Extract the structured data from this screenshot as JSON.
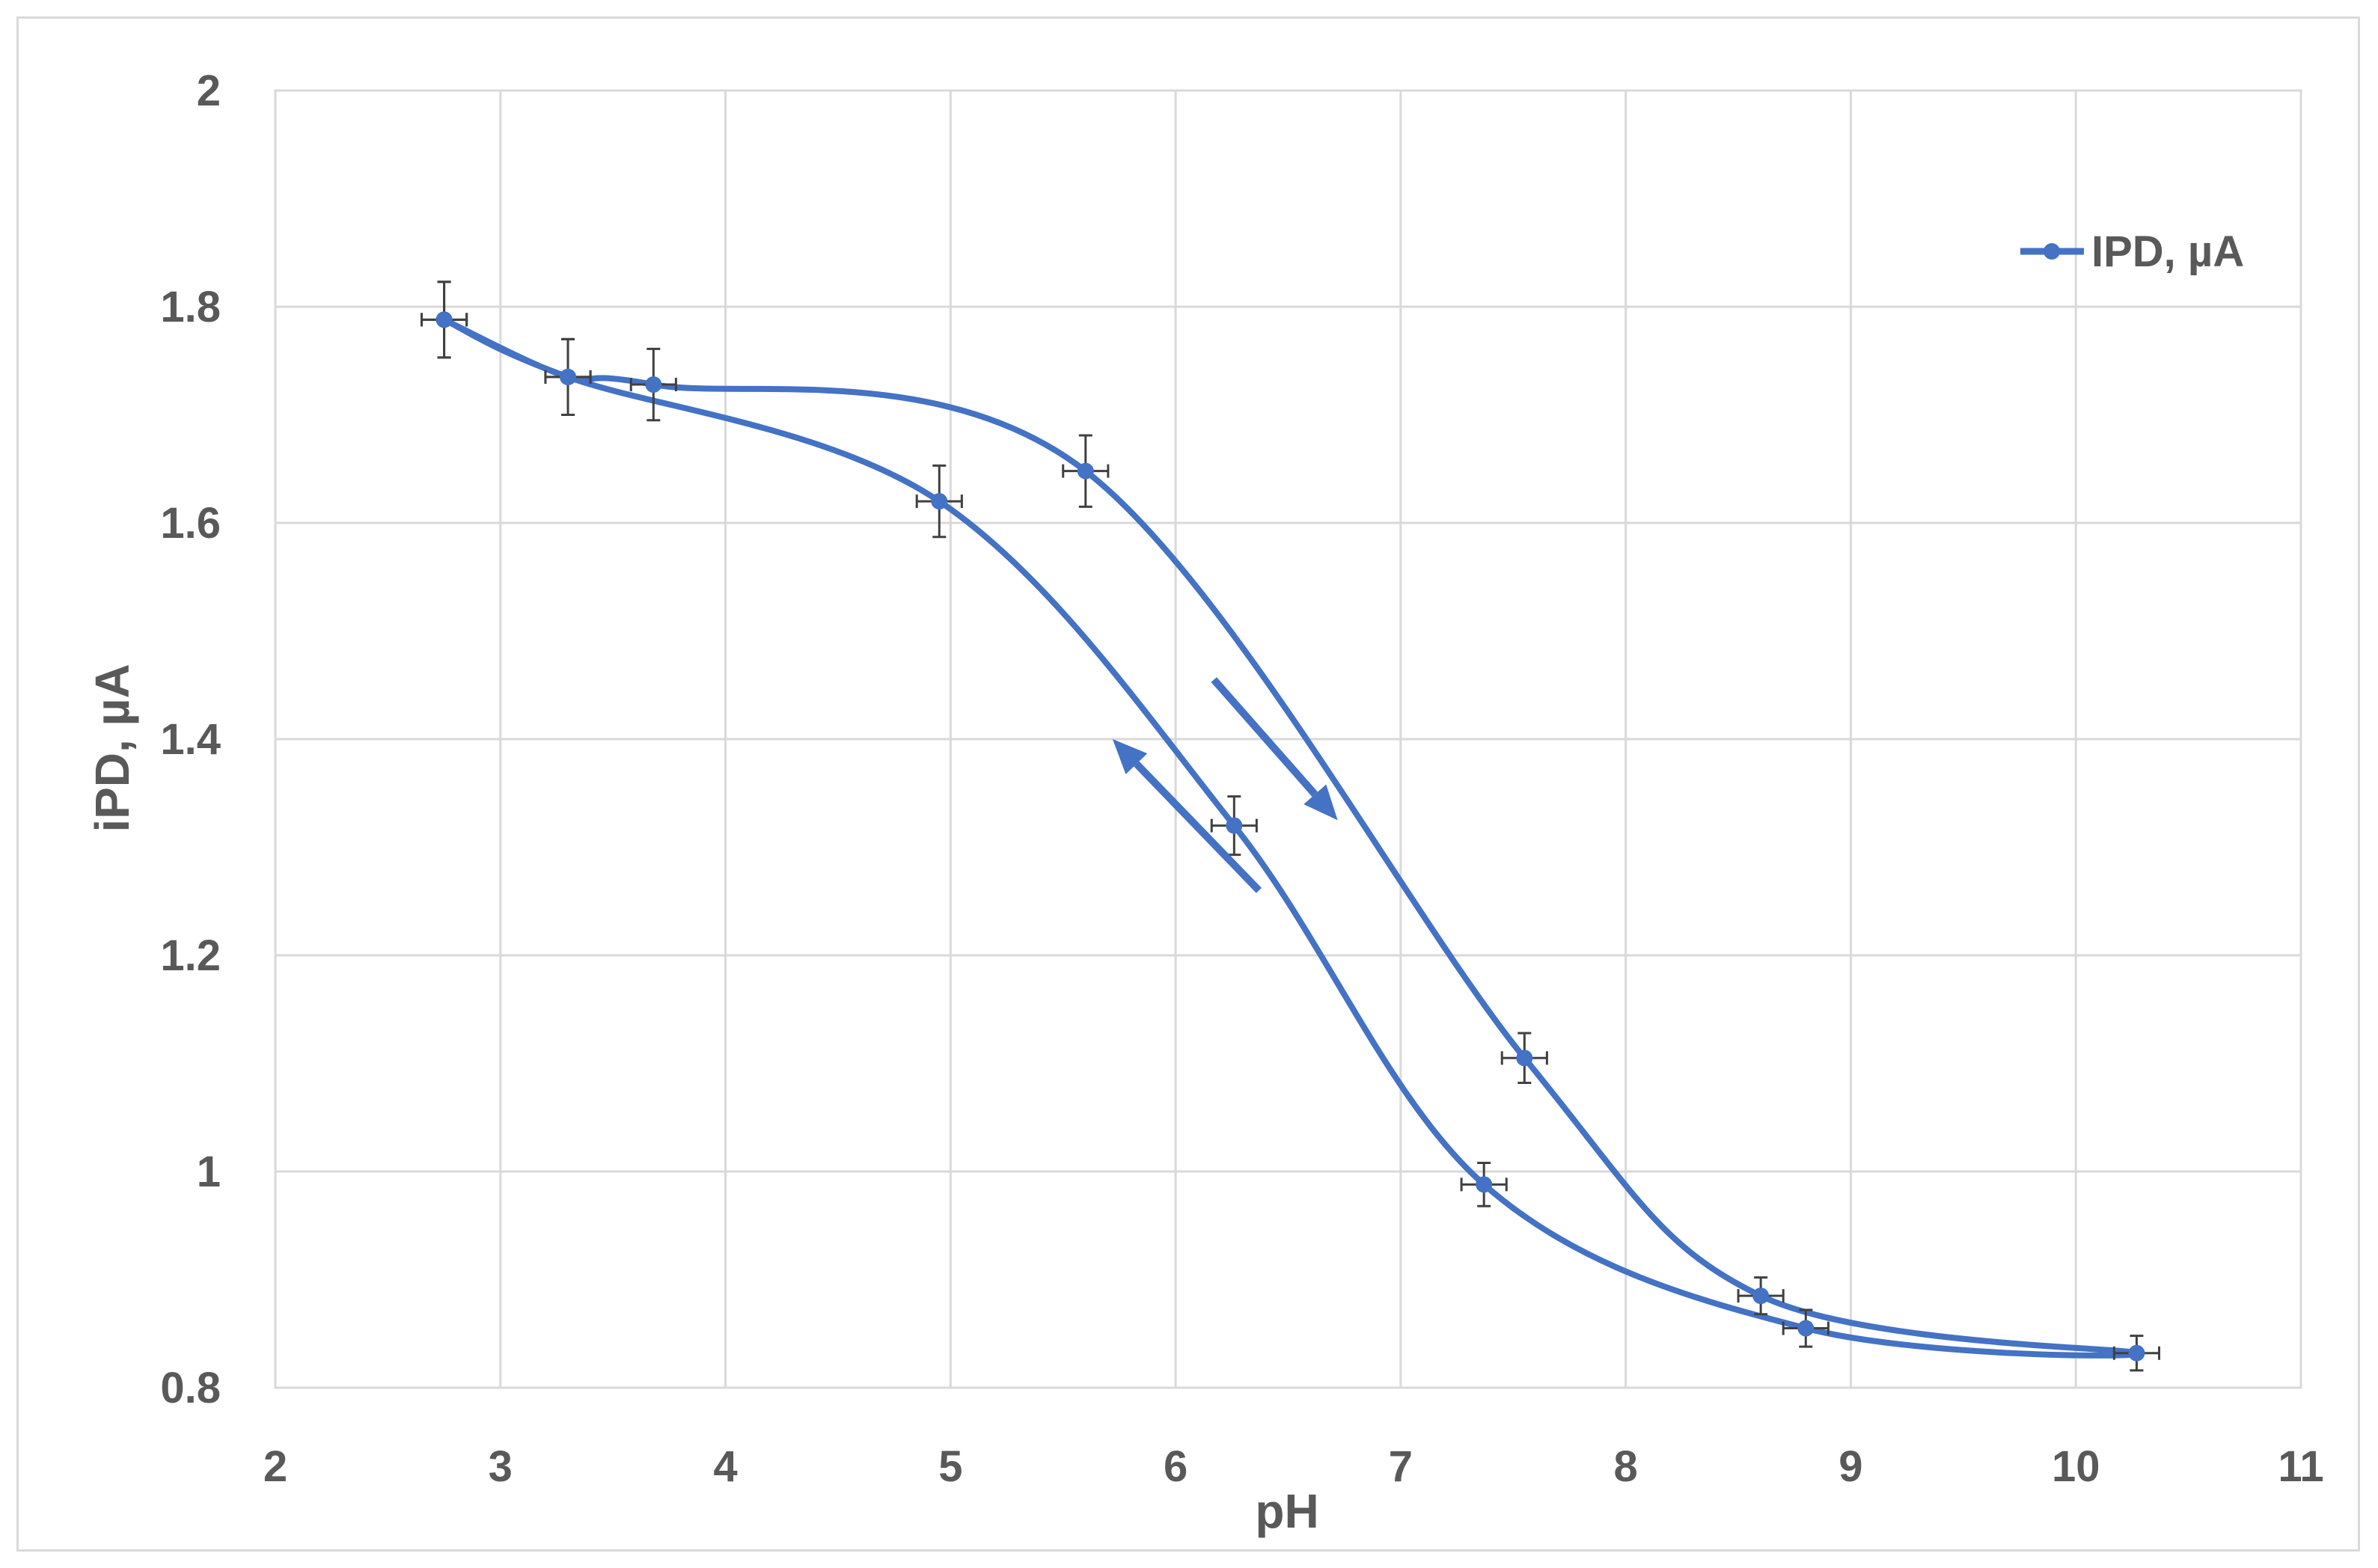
{
  "chart_data": {
    "type": "line",
    "title": "",
    "xlabel": "pH",
    "ylabel": "iPD, µA",
    "xlim": [
      2,
      11
    ],
    "ylim": [
      0.8,
      2
    ],
    "x_ticks": [
      "2",
      "3",
      "4",
      "5",
      "6",
      "7",
      "8",
      "9",
      "10",
      "11"
    ],
    "y_ticks": [
      "0.8",
      "1",
      "1.2",
      "1.4",
      "1.6",
      "1.8",
      "2"
    ],
    "grid": true,
    "legend_position": "top-right",
    "series": [
      {
        "name": "IPD, µA",
        "color": "#4472c4",
        "points": [
          {
            "x": 2.75,
            "y": 1.788,
            "xerr": 0.1,
            "yerr": 0.035
          },
          {
            "x": 3.3,
            "y": 1.735,
            "xerr": 0.1,
            "yerr": 0.035
          },
          {
            "x": 3.68,
            "y": 1.728,
            "xerr": 0.1,
            "yerr": 0.033
          },
          {
            "x": 5.6,
            "y": 1.648,
            "xerr": 0.1,
            "yerr": 0.033
          },
          {
            "x": 7.55,
            "y": 1.105,
            "xerr": 0.1,
            "yerr": 0.023
          },
          {
            "x": 8.6,
            "y": 0.885,
            "xerr": 0.1,
            "yerr": 0.017
          },
          {
            "x": 10.27,
            "y": 0.832,
            "xerr": 0.1,
            "yerr": 0.016
          },
          {
            "x": 8.8,
            "y": 0.855,
            "xerr": 0.1,
            "yerr": 0.017
          },
          {
            "x": 7.37,
            "y": 0.988,
            "xerr": 0.1,
            "yerr": 0.02
          },
          {
            "x": 6.26,
            "y": 1.32,
            "xerr": 0.1,
            "yerr": 0.027
          },
          {
            "x": 4.95,
            "y": 1.62,
            "xerr": 0.1,
            "yerr": 0.033
          },
          {
            "x": 3.3,
            "y": 1.735,
            "xerr": 0.1,
            "yerr": 0.035
          },
          {
            "x": 2.75,
            "y": 1.788,
            "xerr": 0.1,
            "yerr": 0.035
          }
        ]
      }
    ],
    "annotations": [
      {
        "type": "arrow",
        "direction": "down-right",
        "from": {
          "x": 6.17,
          "y": 1.455
        },
        "to": {
          "x": 6.72,
          "y": 1.325
        }
      },
      {
        "type": "arrow",
        "direction": "up-left",
        "from": {
          "x": 6.37,
          "y": 1.26
        },
        "to": {
          "x": 5.72,
          "y": 1.4
        }
      }
    ]
  }
}
